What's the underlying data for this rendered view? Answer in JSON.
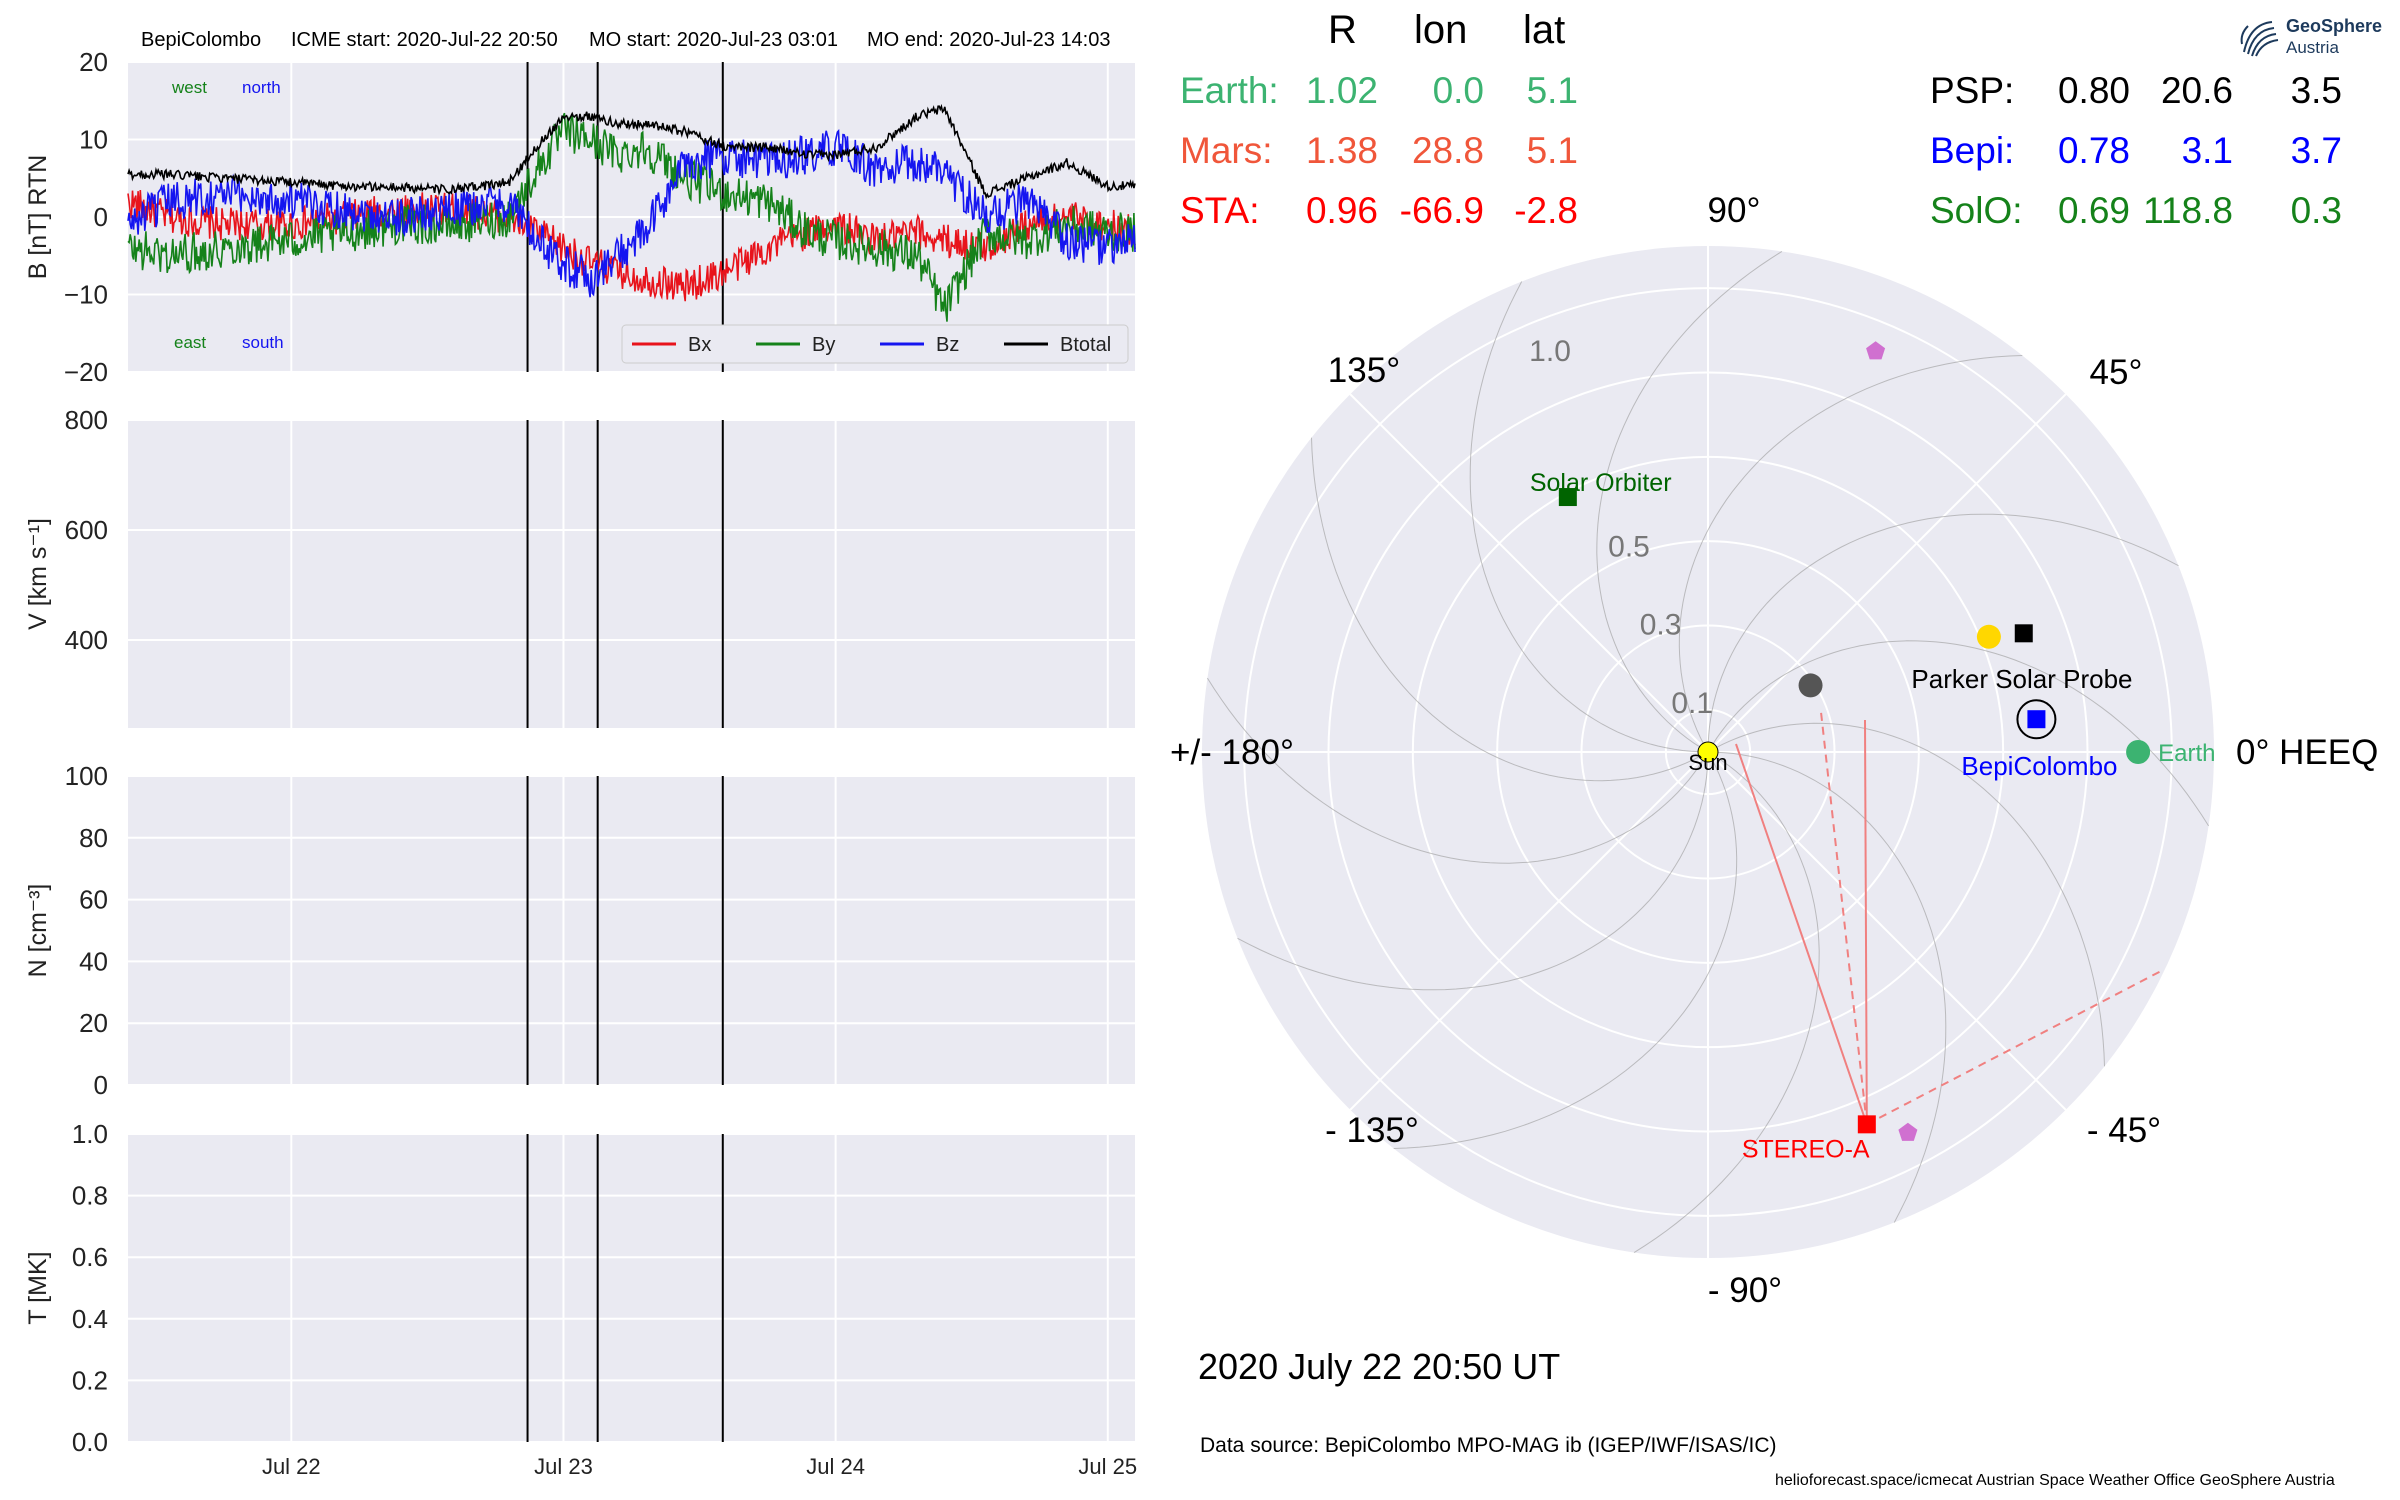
{
  "header": {
    "spacecraft": "BepiColombo",
    "icme_start": "ICME start: 2020-Jul-22 20:50",
    "mo_start": "MO start: 2020-Jul-23 03:01",
    "mo_end": "MO end: 2020-Jul-23 14:03"
  },
  "panel_labels": {
    "west": "west",
    "north": "north",
    "east": "east",
    "south": "south"
  },
  "chart_data": [
    {
      "type": "line",
      "title": "",
      "ylabel": "B [nT] RTN",
      "ylim": [
        -20,
        20
      ],
      "yticks": [
        "20",
        "10",
        "0",
        "−10",
        "−20"
      ],
      "xlim_days": [
        21.4,
        25.1
      ],
      "xticks": [
        "Jul 22",
        "Jul 23",
        "Jul 24",
        "Jul 25"
      ],
      "grid": true,
      "legend_position": "lower-right",
      "event_lines": [
        "2020-Jul-22 20:50",
        "2020-Jul-23 03:01",
        "2020-Jul-23 14:03"
      ],
      "series": [
        {
          "name": "Bx",
          "color": "#e8131b"
        },
        {
          "name": "By",
          "color": "#15821a"
        },
        {
          "name": "Bz",
          "color": "#1515f0"
        },
        {
          "name": "Btotal",
          "color": "#000000"
        }
      ],
      "profile": {
        "x": [
          21.4,
          21.55,
          21.75,
          22.0,
          22.2,
          22.4,
          22.6,
          22.8,
          22.9,
          23.0,
          23.1,
          23.2,
          23.3,
          23.45,
          23.6,
          23.75,
          23.9,
          24.0,
          24.15,
          24.3,
          24.4,
          24.55,
          24.7,
          24.85,
          25.0,
          25.1
        ],
        "Btotal": [
          5.5,
          5.5,
          5.0,
          4.5,
          4.0,
          3.8,
          3.5,
          4.5,
          9,
          13,
          13,
          12,
          12,
          11,
          9,
          9,
          8,
          8,
          9,
          13,
          14,
          3,
          5,
          7,
          4,
          4
        ],
        "Bx": [
          2,
          0,
          -1,
          -1,
          0,
          1,
          1,
          0,
          -2,
          -4,
          -6,
          -7,
          -8,
          -9,
          -7,
          -4,
          -2,
          -1,
          -3,
          -2,
          -3,
          -4,
          -1,
          0,
          -1,
          -2
        ],
        "By": [
          -4,
          -5,
          -4,
          -3,
          -2,
          -1,
          -1,
          0,
          6,
          11,
          10,
          8,
          9,
          5,
          3,
          2,
          -2,
          -3,
          -4,
          -5,
          -12,
          -2,
          -3,
          -1,
          -2,
          -2
        ],
        "Bz": [
          -1,
          2,
          3,
          2,
          1,
          0,
          1,
          2,
          -3,
          -6,
          -8,
          -5,
          -2,
          7,
          8,
          7,
          8,
          9,
          6,
          7,
          6,
          0,
          2,
          -3,
          -4,
          -3
        ]
      }
    },
    {
      "type": "line",
      "title": "",
      "ylabel": "V [km s⁻¹]",
      "ylim": [
        240,
        800
      ],
      "yticks": [
        "800",
        "600",
        "400"
      ],
      "xticks": [
        "Jul 22",
        "Jul 23",
        "Jul 24",
        "Jul 25"
      ],
      "series": []
    },
    {
      "type": "line",
      "title": "",
      "ylabel": "N [cm⁻³]",
      "ylim": [
        0,
        100
      ],
      "yticks": [
        "100",
        "80",
        "60",
        "40",
        "20",
        "0"
      ],
      "xticks": [
        "Jul 22",
        "Jul 23",
        "Jul 24",
        "Jul 25"
      ],
      "series": []
    },
    {
      "type": "line",
      "title": "",
      "ylabel": "T [MK]",
      "ylim": [
        0,
        1.0
      ],
      "yticks": [
        "1.0",
        "0.8",
        "0.6",
        "0.4",
        "0.2",
        "0.0"
      ],
      "xticks": [
        "Jul 22",
        "Jul 23",
        "Jul 24",
        "Jul 25"
      ],
      "series": []
    },
    {
      "type": "scatter",
      "title": "",
      "projection": "polar (HEEQ)",
      "angle_labels": [
        "0° HEEQ",
        "45°",
        "90°",
        "135°",
        "+/- 180°",
        "- 135°",
        "- 90°",
        "- 45°"
      ],
      "radial_labels": [
        "0.1",
        "0.3",
        "0.5",
        "1.0"
      ],
      "rlim": [
        0,
        1.2
      ],
      "objects": [
        {
          "name": "Sun",
          "r": 0.0,
          "lon": 0.0,
          "color": "#ffff00"
        },
        {
          "name": "Earth",
          "r": 1.02,
          "lon": 0.0,
          "color": "#3cb371"
        },
        {
          "name": "BepiColombo",
          "r": 0.78,
          "lon": 3.1,
          "color": "#0000ff"
        },
        {
          "name": "Parker Solar Probe",
          "r": 0.8,
          "lon": 20.6,
          "color": "#000000"
        },
        {
          "name": "Solar Orbiter",
          "r": 0.69,
          "lon": 118.8,
          "color": "#006400"
        },
        {
          "name": "STEREO-A",
          "r": 0.96,
          "lon": -66.9,
          "color": "#ff0000"
        },
        {
          "name": "",
          "r": 0.72,
          "lon": 22.3,
          "color": "#ffd700"
        },
        {
          "name": "",
          "r": 0.29,
          "lon": 33.0,
          "color": "#555555"
        },
        {
          "name": "",
          "r": 1.03,
          "lon": 67.3,
          "color": "#d070d0"
        },
        {
          "name": "",
          "r": 1.02,
          "lon": -62.3,
          "color": "#d070d0"
        }
      ]
    }
  ],
  "positions_table": {
    "headers": [
      "R",
      "lon",
      "lat"
    ],
    "left": [
      {
        "name": "Earth:",
        "R": "1.02",
        "lon": "0.0",
        "lat": "5.1",
        "color": "#3cb371"
      },
      {
        "name": "Mars:",
        "R": "1.38",
        "lon": "28.8",
        "lat": "5.1",
        "color": "#f0563a"
      },
      {
        "name": "STA:",
        "R": "0.96",
        "lon": "-66.9",
        "lat": "-2.8",
        "color": "#ff0000"
      }
    ],
    "right": [
      {
        "name": "PSP:",
        "R": "0.80",
        "lon": "20.6",
        "lat": "3.5",
        "color": "#000000"
      },
      {
        "name": "Bepi:",
        "R": "0.78",
        "lon": "3.1",
        "lat": "3.7",
        "color": "#0000ff"
      },
      {
        "name": "SolO:",
        "R": "0.69",
        "lon": "118.8",
        "lat": "0.3",
        "color": "#15821a"
      }
    ]
  },
  "date_label": "2020 July 22  20:50 UT",
  "data_source": "Data source: BepiColombo MPO-MAG ib (IGEP/IWF/ISAS/IC)",
  "footer": "helioforecast.space/icmecat   Austrian Space Weather Office   GeoSphere Austria",
  "logo": {
    "line1": "GeoSphere",
    "line2": "Austria"
  }
}
